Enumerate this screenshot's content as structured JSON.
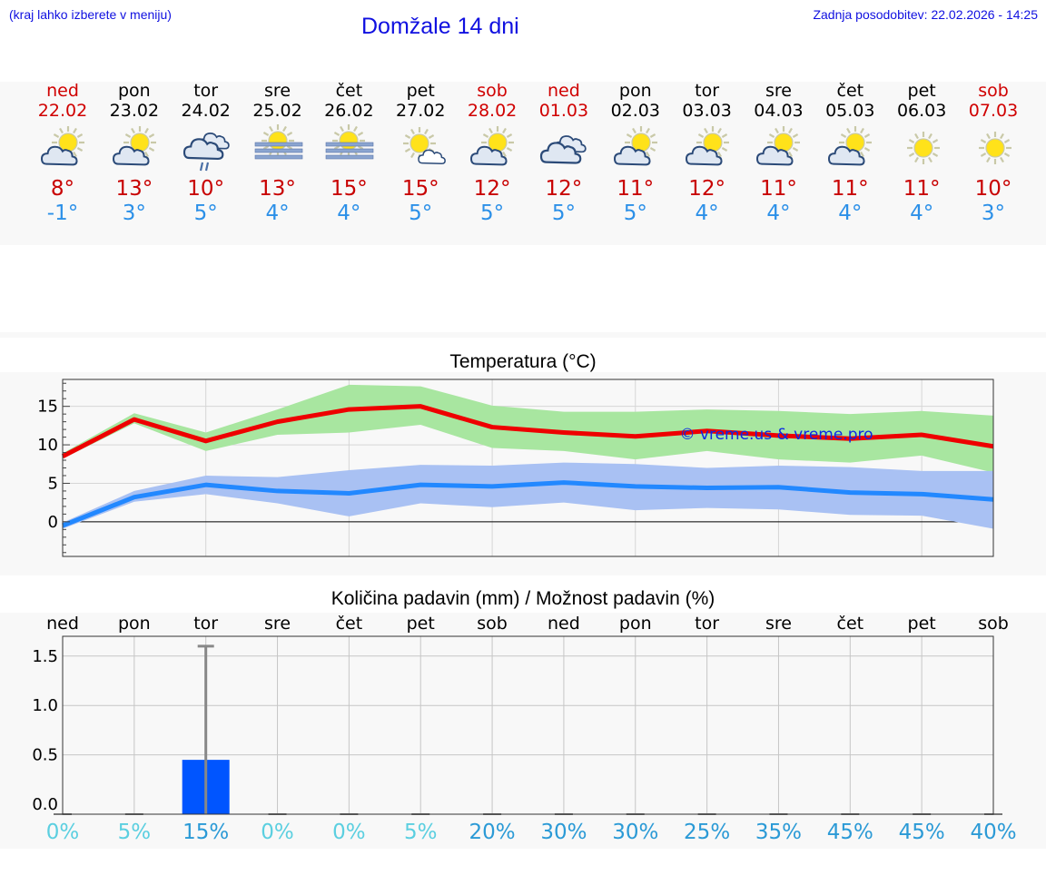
{
  "header": {
    "hint": "(kraj lahko izberete v meniju)",
    "title": "Domžale 14 dni",
    "updated": "Zadnja posodobitev: 22.02.2026 - 14:25"
  },
  "days": [
    {
      "name": "ned",
      "date": "22.02",
      "weekend": true,
      "icon": "partly-cloudy-icon",
      "max": "8°",
      "min": "-1°",
      "pct": "0%"
    },
    {
      "name": "pon",
      "date": "23.02",
      "weekend": false,
      "icon": "partly-cloudy-icon",
      "max": "13°",
      "min": "3°",
      "pct": "5%"
    },
    {
      "name": "tor",
      "date": "24.02",
      "weekend": false,
      "icon": "cloudy-rain-icon",
      "max": "10°",
      "min": "5°",
      "pct": "15%"
    },
    {
      "name": "sre",
      "date": "25.02",
      "weekend": false,
      "icon": "sun-fog-icon",
      "max": "13°",
      "min": "4°",
      "pct": "0%"
    },
    {
      "name": "čet",
      "date": "26.02",
      "weekend": false,
      "icon": "sun-fog-icon",
      "max": "15°",
      "min": "4°",
      "pct": "0%"
    },
    {
      "name": "pet",
      "date": "27.02",
      "weekend": false,
      "icon": "mostly-sunny-icon",
      "max": "15°",
      "min": "5°",
      "pct": "5%"
    },
    {
      "name": "sob",
      "date": "28.02",
      "weekend": true,
      "icon": "partly-cloudy-icon",
      "max": "12°",
      "min": "5°",
      "pct": "20%"
    },
    {
      "name": "ned",
      "date": "01.03",
      "weekend": true,
      "icon": "cloudy-icon",
      "max": "12°",
      "min": "5°",
      "pct": "30%"
    },
    {
      "name": "pon",
      "date": "02.03",
      "weekend": false,
      "icon": "partly-cloudy-icon",
      "max": "11°",
      "min": "5°",
      "pct": "30%"
    },
    {
      "name": "tor",
      "date": "03.03",
      "weekend": false,
      "icon": "partly-cloudy-icon",
      "max": "12°",
      "min": "4°",
      "pct": "25%"
    },
    {
      "name": "sre",
      "date": "04.03",
      "weekend": false,
      "icon": "partly-cloudy-icon",
      "max": "11°",
      "min": "4°",
      "pct": "35%"
    },
    {
      "name": "čet",
      "date": "05.03",
      "weekend": false,
      "icon": "partly-cloudy-icon",
      "max": "11°",
      "min": "4°",
      "pct": "45%"
    },
    {
      "name": "pet",
      "date": "06.03",
      "weekend": false,
      "icon": "sunny-icon",
      "max": "11°",
      "min": "4°",
      "pct": "45%"
    },
    {
      "name": "sob",
      "date": "07.03",
      "weekend": true,
      "icon": "sunny-icon",
      "max": "10°",
      "min": "3°",
      "pct": "40%"
    }
  ],
  "colors": {
    "red": "#d00000",
    "blue_text": "#2c90e8",
    "title_blue": "#1010e0",
    "max_line": "#ee0000",
    "max_band": "#a8e6a0",
    "min_line": "#2288ff",
    "min_band": "#a9c1f3",
    "bar": "#0055ff",
    "pct_low": "#5bcfe0",
    "pct_high": "#2b9ad6"
  },
  "chart_data": [
    {
      "type": "line",
      "title": "Temperatura (°C)",
      "watermark": "© vreme.us & vreme.pro",
      "x": [
        0,
        1,
        2,
        3,
        4,
        5,
        6,
        7,
        8,
        9,
        10,
        11,
        12,
        13
      ],
      "ylim": [
        -4.5,
        18.5
      ],
      "yticks": [
        "0",
        "5",
        "10",
        "15"
      ],
      "series": [
        {
          "name": "max",
          "values": [
            8.5,
            13.3,
            10.5,
            13.0,
            14.6,
            15.0,
            12.3,
            11.6,
            11.1,
            11.8,
            11.2,
            10.8,
            11.3,
            9.8
          ],
          "band_low": [
            8.2,
            12.8,
            9.2,
            11.3,
            11.6,
            12.6,
            9.6,
            9.2,
            8.1,
            9.2,
            8.1,
            7.7,
            8.6,
            6.4
          ],
          "band_high": [
            8.9,
            14.1,
            11.6,
            14.6,
            17.8,
            17.6,
            15.1,
            14.3,
            14.3,
            14.6,
            14.4,
            14.0,
            14.4,
            13.8
          ]
        },
        {
          "name": "min",
          "values": [
            -0.5,
            3.2,
            4.8,
            4.0,
            3.7,
            4.8,
            4.6,
            5.1,
            4.6,
            4.4,
            4.5,
            3.8,
            3.6,
            2.9
          ],
          "band_low": [
            -0.9,
            2.6,
            3.6,
            2.4,
            0.7,
            2.4,
            1.9,
            2.5,
            1.5,
            1.8,
            1.6,
            0.9,
            0.8,
            -0.9
          ],
          "band_high": [
            -0.1,
            4.0,
            6.0,
            5.8,
            6.7,
            7.4,
            7.3,
            7.7,
            7.5,
            7.0,
            7.3,
            7.1,
            6.6,
            6.6
          ]
        }
      ]
    },
    {
      "type": "bar",
      "title": "Količina padavin (mm) / Možnost padavin (%)",
      "categories": [
        "ned",
        "pon",
        "tor",
        "sre",
        "čet",
        "pet",
        "sob",
        "ned",
        "pon",
        "tor",
        "sre",
        "čet",
        "pet",
        "sob"
      ],
      "values": [
        0,
        0,
        0.45,
        0,
        0,
        0,
        0,
        0,
        0,
        0,
        0,
        0,
        0,
        0
      ],
      "error_high": [
        0,
        0,
        1.6,
        0,
        0,
        0,
        0,
        0,
        0,
        0,
        0,
        0,
        0,
        0
      ],
      "ylim": [
        -0.1,
        1.7
      ],
      "yticks": [
        "0.0",
        "0.5",
        "1.0",
        "1.5"
      ],
      "probability": [
        "0%",
        "5%",
        "15%",
        "0%",
        "0%",
        "5%",
        "20%",
        "30%",
        "30%",
        "25%",
        "35%",
        "45%",
        "45%",
        "40%"
      ]
    }
  ]
}
